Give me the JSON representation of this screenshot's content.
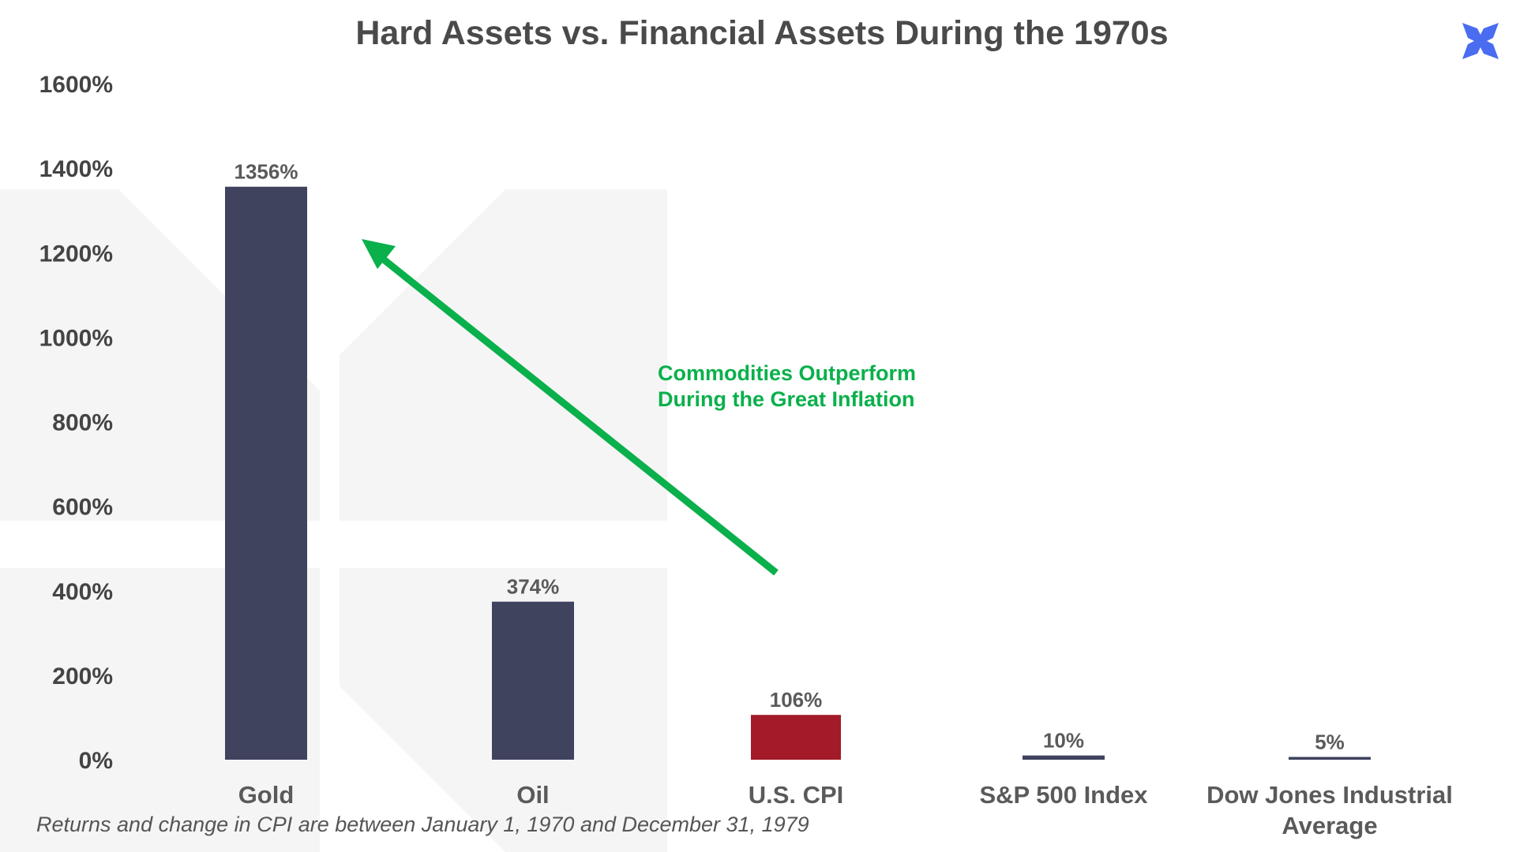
{
  "chart_data": {
    "type": "bar",
    "title": "Hard Assets vs. Financial Assets During the 1970s",
    "categories": [
      "Gold",
      "Oil",
      "U.S. CPI",
      "S&P 500 Index",
      "Dow Jones Industrial Average"
    ],
    "category_lines": [
      [
        "Gold"
      ],
      [
        "Oil"
      ],
      [
        "U.S. CPI"
      ],
      [
        "S&P 500 Index"
      ],
      [
        "Dow Jones Industrial",
        "Average"
      ]
    ],
    "values": [
      1356,
      374,
      106,
      10,
      5
    ],
    "data_labels": [
      "1356%",
      "374%",
      "106%",
      "10%",
      "5%"
    ],
    "bar_colors": [
      "#3f435e",
      "#3f435e",
      "#a31a28",
      "#3f435e",
      "#3f435e"
    ],
    "ylim": [
      0,
      1600
    ],
    "y_ticks": [
      0,
      200,
      400,
      600,
      800,
      1000,
      1200,
      1400,
      1600
    ],
    "y_tick_labels": [
      "0%",
      "200%",
      "400%",
      "600%",
      "800%",
      "1000%",
      "1200%",
      "1400%",
      "1600%"
    ],
    "xlabel": "",
    "ylabel": "",
    "grid": false,
    "legend": "none",
    "annotation": {
      "lines": [
        "Commodities Outperform",
        "During the Great Inflation"
      ],
      "color": "#0ab04b"
    },
    "footnote": "Returns and change in CPI are between January 1, 1970 and December 31, 1979"
  },
  "logo": {
    "icon": "x-logo-icon",
    "color": "#4a6cf0"
  },
  "watermark": {
    "icon": "k-watermark-icon",
    "color": "#f4f4f4"
  }
}
